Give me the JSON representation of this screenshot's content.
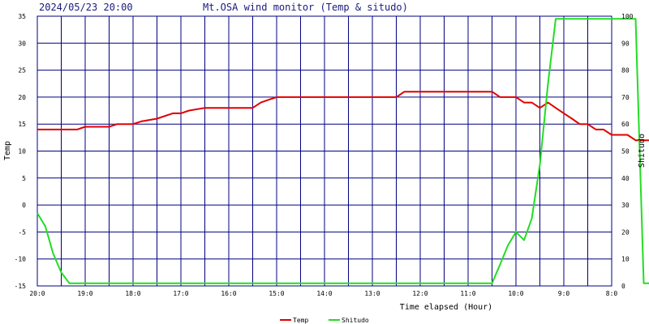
{
  "header": {
    "timestamp": "2024/05/23 20:00",
    "title": "Mt.OSA wind monitor (Temp & situdo)"
  },
  "chart_data": {
    "type": "line",
    "xlabel": "Time elapsed (Hour)",
    "ylabel_left": "Temp",
    "ylabel_right": "Shitudo",
    "ylim_left": [
      -15,
      35
    ],
    "ylim_right": [
      0,
      100
    ],
    "left_ticks": [
      "35",
      "30",
      "25",
      "20",
      "15",
      "10",
      "5",
      "0",
      "-5",
      "-10",
      "-15"
    ],
    "right_ticks": [
      "100",
      "90",
      "80",
      "70",
      "60",
      "50",
      "40",
      "30",
      "20",
      "10",
      "0"
    ],
    "x_ticks": [
      "20:0",
      "19:0",
      "18:0",
      "17:0",
      "16:0",
      "15:0",
      "14:0",
      "13:0",
      "12:0",
      "11:0",
      "10:0",
      "9:0",
      "8:0"
    ],
    "grid": true,
    "legend_position": "bottom-center",
    "series": [
      {
        "name": "Temp",
        "color": "#e00000",
        "axis": "left",
        "x": [
          0,
          0.83,
          1.0,
          1.5,
          1.67,
          2.0,
          2.17,
          2.5,
          2.83,
          3.0,
          3.17,
          3.5,
          3.67,
          4.0,
          4.17,
          4.5,
          4.67,
          4.83,
          5.0,
          5.5,
          6.0,
          6.5,
          7.0,
          7.5,
          7.67,
          8.0,
          8.5,
          9.0,
          9.5,
          9.67,
          10.0,
          10.17,
          10.33,
          10.5,
          10.67,
          10.83,
          11.0,
          11.17,
          11.33,
          11.5,
          11.67,
          11.83,
          12.0,
          12.17,
          12.33,
          12.5,
          12.67,
          12.83,
          13.0
        ],
        "values": [
          14,
          14,
          14.5,
          14.5,
          15,
          15,
          15.5,
          16,
          17,
          17,
          17.5,
          18,
          18,
          18,
          18,
          18,
          19,
          19.5,
          20,
          20,
          20,
          20,
          20,
          20,
          21,
          21,
          21,
          21,
          21,
          20,
          20,
          19,
          19,
          18,
          19,
          18,
          17,
          16,
          15,
          15,
          14,
          14,
          13,
          13,
          13,
          12,
          12,
          12,
          12
        ]
      },
      {
        "name": "Shitudo",
        "color": "#22dd22",
        "axis": "right",
        "x": [
          0,
          0.17,
          0.33,
          0.5,
          0.67,
          0.83,
          1.0,
          2.0,
          3.0,
          4.0,
          5.0,
          6.0,
          7.0,
          8.0,
          9.0,
          9.5,
          9.67,
          9.83,
          10.0,
          10.17,
          10.33,
          10.5,
          10.67,
          10.83,
          11.0,
          11.17,
          11.33,
          11.5,
          11.67,
          11.83,
          12.0,
          12.17,
          12.33,
          12.5,
          12.67,
          12.83,
          13.0
        ],
        "values": [
          27,
          22,
          12,
          5,
          1,
          1,
          1,
          1,
          1,
          1,
          1,
          1,
          1,
          1,
          1,
          1,
          8,
          15,
          20,
          17,
          25,
          45,
          75,
          99,
          99,
          99,
          99,
          99,
          99,
          99,
          99,
          99,
          99,
          99,
          1,
          1,
          30
        ]
      }
    ]
  }
}
